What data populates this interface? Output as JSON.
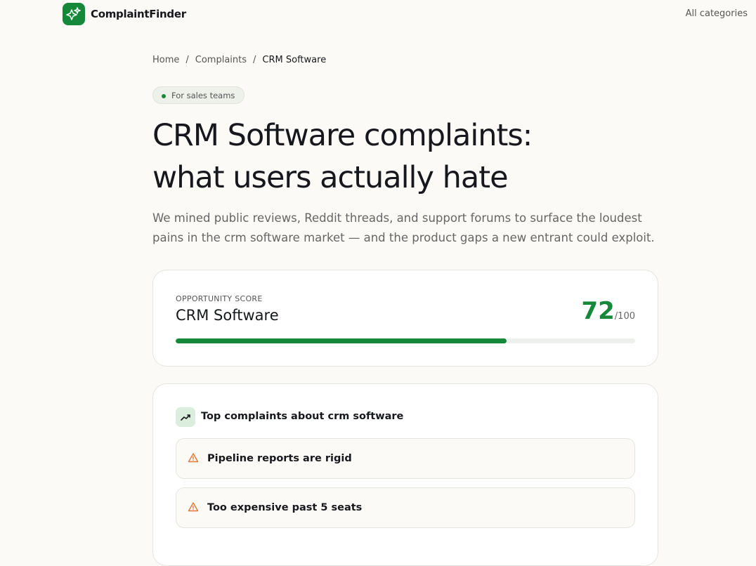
{
  "header": {
    "brand": "ComplaintFinder",
    "nav": "All categories"
  },
  "breadcrumb": {
    "items": [
      "Home",
      "Complaints",
      "CRM Software"
    ],
    "separator": "/"
  },
  "hero": {
    "badge": "For sales teams",
    "title_lines": [
      "CRM Software complaints:",
      "what users actually hate"
    ],
    "description": "We mined public reviews, Reddit threads, and support forums to surface the loudest pains in the crm software market — and the product gaps a new entrant could exploit."
  },
  "score_card": {
    "label": "OPPORTUNITY SCORE",
    "name": "CRM Software",
    "score": 72,
    "max": 100,
    "max_label": "/100"
  },
  "complaints": {
    "heading": "Top complaints about crm software",
    "items": [
      "Pipeline reports are rigid",
      "Too expensive past 5 seats"
    ]
  }
}
